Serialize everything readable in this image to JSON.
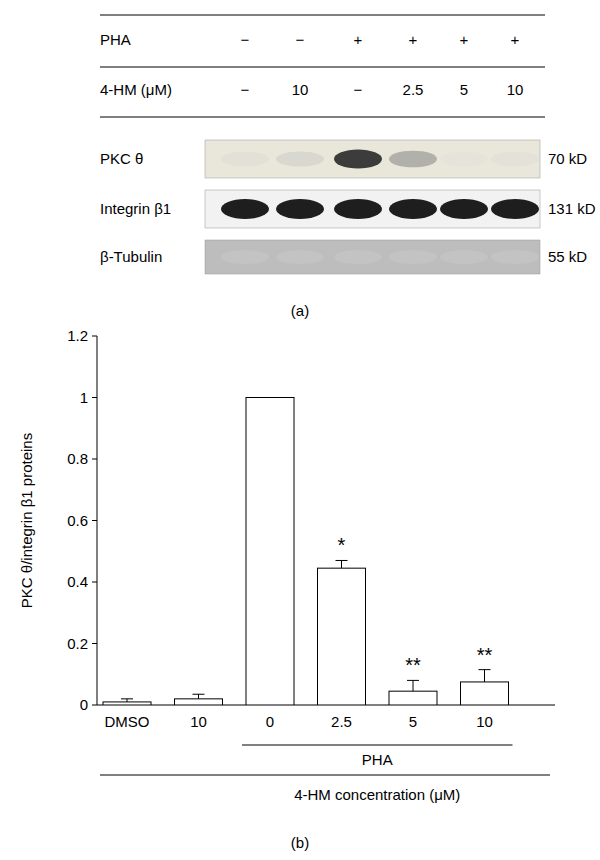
{
  "blot": {
    "conditions": [
      {
        "label": "PHA",
        "cells": [
          "−",
          "−",
          "+",
          "+",
          "+",
          "+"
        ]
      },
      {
        "label": "4-HM (μM)",
        "cells": [
          "−",
          "10",
          "−",
          "2.5",
          "5",
          "10"
        ]
      }
    ],
    "bands": [
      {
        "name": "PKC θ",
        "size": "70 kD",
        "intensities": [
          0.12,
          0.2,
          0.85,
          0.45,
          0.06,
          0.1
        ]
      },
      {
        "name": "Integrin β1",
        "size": "131 kD",
        "intensities": [
          1,
          1,
          1,
          1,
          1,
          1
        ]
      },
      {
        "name": "β-Tubulin",
        "size": "55 kD",
        "intensities": [
          0.02,
          0.02,
          0.02,
          0.02,
          0.02,
          0.02
        ]
      }
    ],
    "caption": "(a)"
  },
  "chart_data": {
    "type": "bar",
    "categories": [
      "DMSO",
      "10",
      "0",
      "2.5",
      "5",
      "10"
    ],
    "values": [
      0.01,
      0.02,
      1,
      0.445,
      0.045,
      0.075
    ],
    "errors": [
      0.01,
      0.015,
      0,
      0.025,
      0.035,
      0.04
    ],
    "significance": [
      null,
      null,
      null,
      "*",
      "**",
      "**"
    ],
    "color": "#ffffff",
    "y_label": "PKC θ/integrin β1 proteins",
    "group_label": {
      "text": "PHA",
      "categories": [
        2,
        3,
        4,
        5
      ]
    },
    "x_label": "4-HM concentration (μM)",
    "ylim": [
      0,
      1.2
    ],
    "yticks": [
      0,
      0.2,
      0.4,
      0.6,
      0.8,
      1,
      1.2
    ],
    "grid": false,
    "caption": "(b)"
  }
}
